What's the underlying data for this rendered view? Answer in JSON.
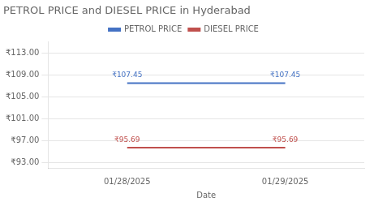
{
  "chart_data": {
    "type": "line",
    "title": "PETROL PRICE and DIESEL PRICE in Hyderabad",
    "x_label": "Date",
    "categories": [
      "01/28/2025",
      "01/29/2025"
    ],
    "series": [
      {
        "name": "PETROL PRICE",
        "color": "#4472C4",
        "values": [
          107.45,
          107.45
        ],
        "value_labels": [
          "₹107.45",
          "₹107.45"
        ]
      },
      {
        "name": "DIESEL PRICE",
        "color": "#C0504D",
        "values": [
          95.69,
          95.69
        ],
        "value_labels": [
          "₹95.69",
          "₹95.69"
        ]
      }
    ],
    "ylim": [
      92.0,
      115.0
    ],
    "yticks": [
      {
        "value": 93.0,
        "label": "₹93.00"
      },
      {
        "value": 97.0,
        "label": "₹97.00"
      },
      {
        "value": 101.0,
        "label": "₹101.00"
      },
      {
        "value": 105.0,
        "label": "₹105.00"
      },
      {
        "value": 109.0,
        "label": "₹109.00"
      },
      {
        "value": 113.0,
        "label": "₹113.00"
      }
    ],
    "grid": true,
    "legend": "top",
    "data_labels": true
  }
}
